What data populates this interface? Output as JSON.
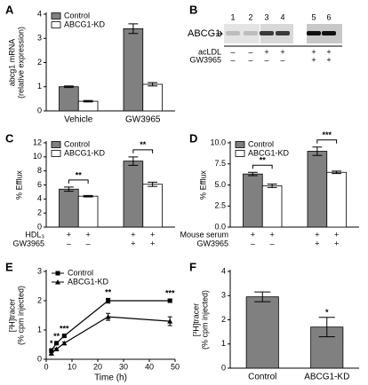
{
  "blot": {
    "label": "B",
    "protein": "ABCG1",
    "lanes": [
      1,
      2,
      3,
      4,
      5,
      6
    ],
    "rows": [
      {
        "label": "acLDL",
        "marks": [
          "–",
          "–",
          "+",
          "+",
          "+",
          "+"
        ]
      },
      {
        "label": "GW3965",
        "marks": [
          "–",
          "–",
          "–",
          "–",
          "+",
          "+"
        ]
      }
    ]
  },
  "chart_data": [
    {
      "label": "A",
      "type": "bar",
      "ylabel": [
        "abcg1 mRNA",
        "(relative expression)"
      ],
      "categories": [
        "Vehicle",
        "GW3965"
      ],
      "legend": "upper left",
      "series": [
        {
          "name": "Control",
          "color": "#808080",
          "values": [
            1.0,
            3.4
          ],
          "errors": [
            0.03,
            0.2
          ]
        },
        {
          "name": "ABCG1-KD",
          "color": "#ffffff",
          "values": [
            0.4,
            1.1
          ],
          "errors": [
            0.03,
            0.07
          ]
        }
      ],
      "ylim": [
        0,
        4
      ],
      "yticks": [
        0,
        1,
        2,
        3,
        4
      ]
    },
    {
      "label": "C",
      "type": "bar",
      "ylabel": [
        "% Efflux"
      ],
      "legend": "upper left",
      "series": [
        {
          "name": "Control",
          "color": "#808080",
          "values": [
            5.4,
            9.4
          ],
          "errors": [
            0.3,
            0.6
          ]
        },
        {
          "name": "ABCG1-KD",
          "color": "#ffffff",
          "values": [
            4.4,
            6.1
          ],
          "errors": [
            0.1,
            0.3
          ]
        }
      ],
      "significance": [
        {
          "text": "**",
          "group": 0
        },
        {
          "text": "**",
          "group": 1
        }
      ],
      "rows": [
        {
          "label": "HDL₃",
          "marks": [
            "+",
            "+",
            "+",
            "+"
          ]
        },
        {
          "label": "GW3965",
          "marks": [
            "–",
            "–",
            "+",
            "+"
          ]
        }
      ],
      "ylim": [
        0,
        12
      ],
      "yticks": [
        0,
        2,
        4,
        6,
        8,
        10,
        12
      ]
    },
    {
      "label": "D",
      "type": "bar",
      "ylabel": [
        "% Efflux"
      ],
      "legend": "upper left",
      "series": [
        {
          "name": "Control",
          "color": "#808080",
          "values": [
            6.3,
            9.0
          ],
          "errors": [
            0.2,
            0.5
          ]
        },
        {
          "name": "ABCG1-KD",
          "color": "#ffffff",
          "values": [
            4.9,
            6.5
          ],
          "errors": [
            0.2,
            0.15
          ]
        }
      ],
      "significance": [
        {
          "text": "**",
          "group": 0
        },
        {
          "text": "***",
          "group": 1
        }
      ],
      "rows": [
        {
          "label": "Mouse serum",
          "marks": [
            "+",
            "+",
            "+",
            "+"
          ]
        },
        {
          "label": "GW3965",
          "marks": [
            "–",
            "–",
            "+",
            "+"
          ]
        }
      ],
      "ylim": [
        0,
        10
      ],
      "yticks": [
        {
          "value": 0,
          "label": "0.0"
        },
        {
          "value": 2.5,
          "label": "2.5"
        },
        {
          "value": 5,
          "label": "5.0"
        },
        {
          "value": 7.5,
          "label": "7.5"
        },
        {
          "value": 10,
          "label": "10.0"
        }
      ]
    },
    {
      "label": "E",
      "type": "line",
      "ylabel": [
        "[³H]tracer",
        "(% cpm injected)"
      ],
      "xlabel": "Time (h)",
      "legend": "upper left",
      "x": [
        2,
        4,
        7,
        24,
        48
      ],
      "series": [
        {
          "name": "Control",
          "color": "#000000",
          "marker": "square",
          "values": [
            0.3,
            0.55,
            0.8,
            2.0,
            2.0
          ],
          "errors": [
            0.04,
            0.04,
            0.04,
            0.08,
            0.06
          ]
        },
        {
          "name": "ABCG1-KD",
          "color": "#000000",
          "marker": "triangle",
          "values": [
            0.2,
            0.35,
            0.55,
            1.45,
            1.3
          ],
          "errors": [
            0.03,
            0.03,
            0.04,
            0.12,
            0.15
          ]
        }
      ],
      "annotations": [
        {
          "text": "*",
          "x": 2
        },
        {
          "text": "**",
          "x": 4
        },
        {
          "text": "***",
          "x": 7
        },
        {
          "text": "**",
          "x": 24
        },
        {
          "text": "***",
          "x": 48
        }
      ],
      "xlim": [
        0,
        50
      ],
      "xticks": [
        0,
        10,
        20,
        30,
        40,
        50
      ],
      "ylim": [
        0,
        3
      ],
      "yticks": [
        0,
        1,
        2,
        3
      ]
    },
    {
      "label": "F",
      "type": "bar",
      "ylabel": [
        "[³H]tracer",
        "(% cpm injected)"
      ],
      "categories": [
        "Control",
        "ABCG1-KD"
      ],
      "series": [
        {
          "color": "#808080",
          "values": [
            2.95,
            1.7
          ],
          "errors": [
            0.2,
            0.4
          ]
        }
      ],
      "annotations": [
        {
          "text": "*",
          "category": 1
        }
      ],
      "ylim": [
        0,
        4
      ],
      "yticks": [
        0,
        1,
        2,
        3,
        4
      ]
    }
  ]
}
